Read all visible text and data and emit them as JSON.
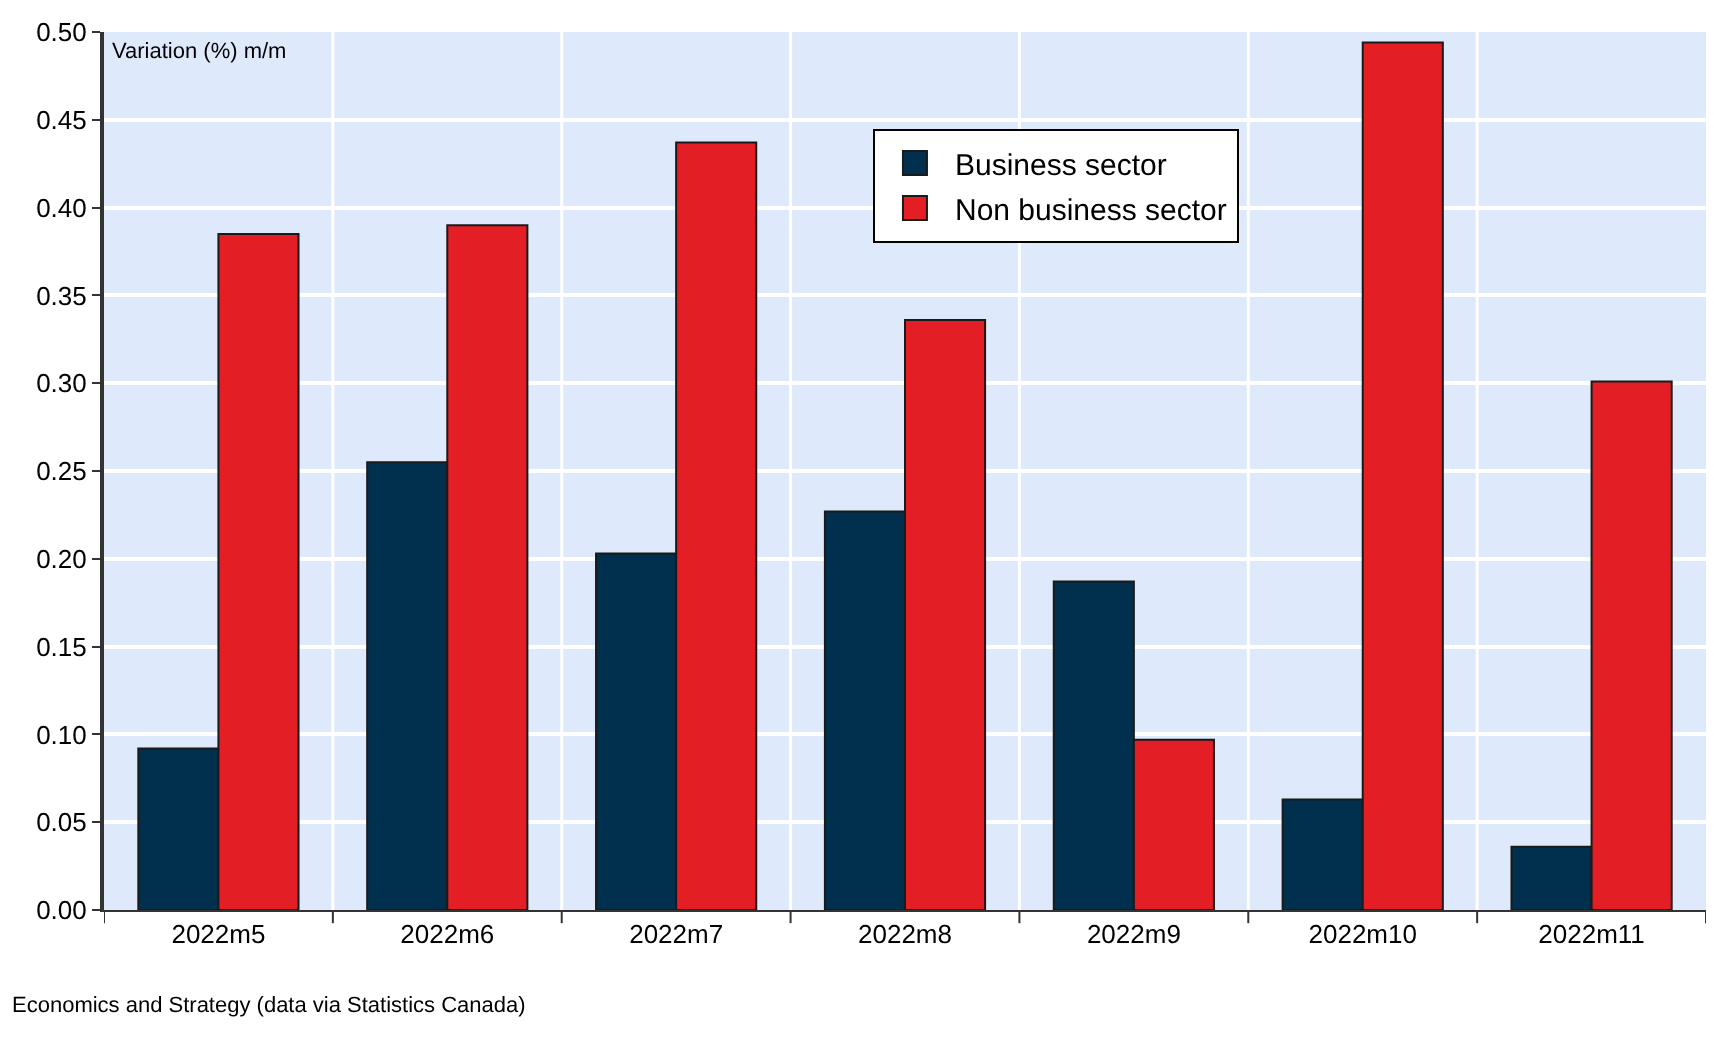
{
  "chart_data": {
    "type": "bar",
    "ylabel": "Variation (%) m/m",
    "categories": [
      "2022m5",
      "2022m6",
      "2022m7",
      "2022m8",
      "2022m9",
      "2022m10",
      "2022m11"
    ],
    "series": [
      {
        "name": "Business sector",
        "color": "#00304d",
        "values": [
          0.092,
          0.255,
          0.203,
          0.227,
          0.187,
          0.063,
          0.036
        ]
      },
      {
        "name": "Non business sector",
        "color": "#e31e25",
        "values": [
          0.385,
          0.39,
          0.437,
          0.336,
          0.097,
          0.494,
          0.301
        ]
      }
    ],
    "ylim": [
      0,
      0.5
    ],
    "yticks": [
      {
        "value": 0,
        "label": "0.00"
      },
      {
        "value": 0.05,
        "label": "0.05"
      },
      {
        "value": 0.1,
        "label": "0.10"
      },
      {
        "value": 0.15,
        "label": "0.15"
      },
      {
        "value": 0.2,
        "label": "0.20"
      },
      {
        "value": 0.25,
        "label": "0.25"
      },
      {
        "value": 0.3,
        "label": "0.30"
      },
      {
        "value": 0.35,
        "label": "0.35"
      },
      {
        "value": 0.4,
        "label": "0.40"
      },
      {
        "value": 0.45,
        "label": "0.45"
      },
      {
        "value": 0.5,
        "label": "0.50"
      }
    ],
    "grid": true,
    "legend": "top",
    "annotations": [
      "Economics and Strategy (data via Statistics Canada)"
    ]
  }
}
